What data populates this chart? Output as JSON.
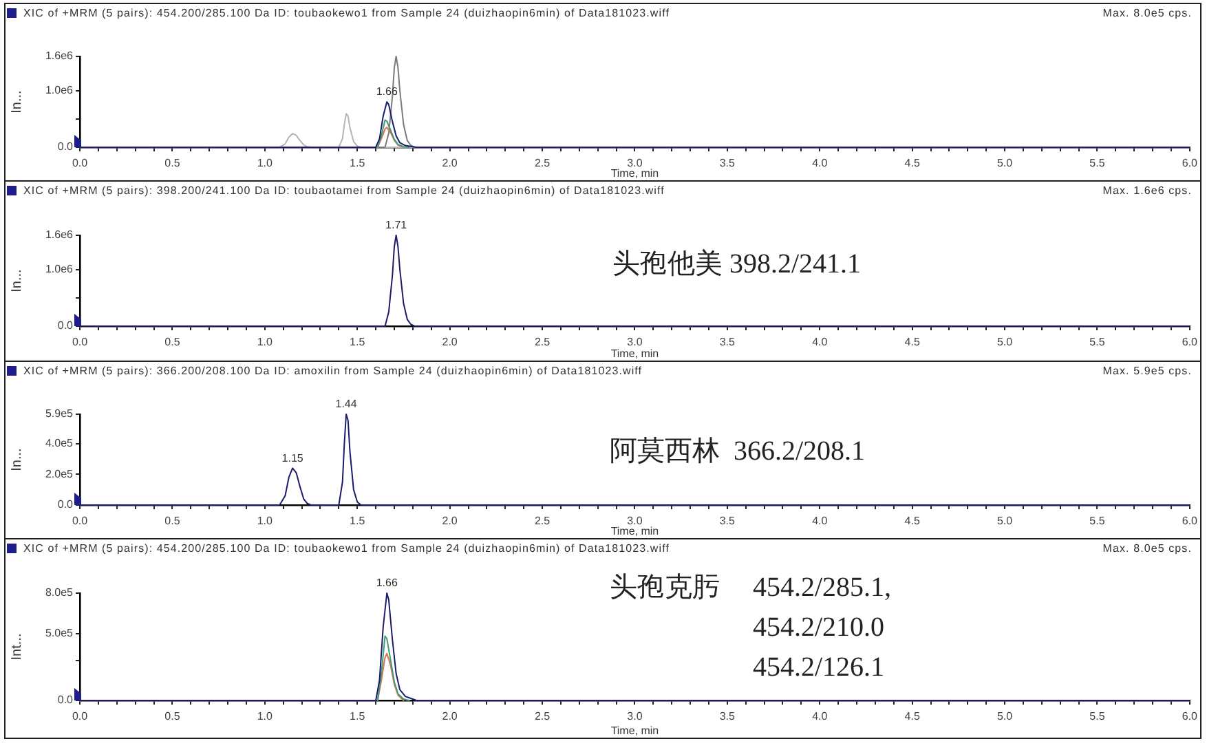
{
  "chart_data": [
    {
      "type": "line",
      "title": "XIC of +MRM (5 pairs): 454.200/285.100 Da ID: toubaokewo1 from Sample 24 (duizhaopin6min) of Data181023.wiff",
      "subtitle": "Max. 8.0e5 cps.",
      "xlabel": "Time, min",
      "ylabel": "In...",
      "xlim": [
        0,
        6
      ],
      "xticks": [
        {
          "value": 0,
          "label": "0.0"
        },
        {
          "value": 0.1,
          "label": null
        },
        {
          "value": 0.2,
          "label": null
        },
        {
          "value": 0.3,
          "label": null
        },
        {
          "value": 0.4,
          "label": null
        },
        0.5,
        {
          "value": 0.6,
          "label": null
        },
        {
          "value": 0.7,
          "label": null
        },
        {
          "value": 0.8,
          "label": null
        },
        {
          "value": 0.9,
          "label": null
        },
        {
          "value": 1,
          "label": "1.0"
        },
        {
          "value": 1.1,
          "label": null
        },
        {
          "value": 1.2,
          "label": null
        },
        {
          "value": 1.3,
          "label": null
        },
        {
          "value": 1.4,
          "label": null
        },
        1.5,
        {
          "value": 1.6,
          "label": null
        },
        {
          "value": 1.7,
          "label": null
        },
        {
          "value": 1.8,
          "label": null
        },
        {
          "value": 1.9,
          "label": null
        },
        {
          "value": 2,
          "label": "2.0"
        },
        {
          "value": 2.1,
          "label": null
        },
        {
          "value": 2.2,
          "label": null
        },
        {
          "value": 2.3,
          "label": null
        },
        {
          "value": 2.4,
          "label": null
        },
        2.5,
        {
          "value": 2.6,
          "label": null
        },
        {
          "value": 2.7,
          "label": null
        },
        {
          "value": 2.8,
          "label": null
        },
        {
          "value": 2.9,
          "label": null
        },
        {
          "value": 3,
          "label": "3.0"
        },
        {
          "value": 3.1,
          "label": null
        },
        {
          "value": 3.2,
          "label": null
        },
        {
          "value": 3.3,
          "label": null
        },
        {
          "value": 3.4,
          "label": null
        },
        3.5,
        {
          "value": 3.6,
          "label": null
        },
        {
          "value": 3.7,
          "label": null
        },
        {
          "value": 3.8,
          "label": null
        },
        {
          "value": 3.9,
          "label": null
        },
        {
          "value": 4,
          "label": "4.0"
        },
        {
          "value": 4.1,
          "label": null
        },
        {
          "value": 4.2,
          "label": null
        },
        {
          "value": 4.3,
          "label": null
        },
        {
          "value": 4.4,
          "label": null
        },
        4.5,
        {
          "value": 4.6,
          "label": null
        },
        {
          "value": 4.7,
          "label": null
        },
        {
          "value": 4.8,
          "label": null
        },
        {
          "value": 4.9,
          "label": null
        },
        {
          "value": 5,
          "label": "5.0"
        },
        {
          "value": 5.1,
          "label": null
        },
        {
          "value": 5.2,
          "label": null
        },
        {
          "value": 5.3,
          "label": null
        },
        {
          "value": 5.4,
          "label": null
        },
        5.5,
        {
          "value": 5.6,
          "label": null
        },
        {
          "value": 5.7,
          "label": null
        },
        {
          "value": 5.8,
          "label": null
        },
        {
          "value": 5.9,
          "label": null
        },
        {
          "value": 6,
          "label": "6.0"
        }
      ],
      "ylim": [
        0,
        1600000
      ],
      "yticks": [
        {
          "value": 0,
          "label": "0.0"
        },
        {
          "value": 500000,
          "label": null
        },
        {
          "value": 1000000,
          "label": "1.0e6"
        },
        {
          "value": 1600000,
          "label": "1.6e6"
        }
      ],
      "series": [
        {
          "color": "#1b1b6b",
          "x": [
            0,
            1.6,
            1.62,
            1.64,
            1.66,
            1.67,
            1.69,
            1.71,
            1.73,
            1.76,
            1.8,
            1.82,
            6
          ],
          "values": [
            0,
            0,
            150000,
            550000,
            800000,
            750000,
            450000,
            200000,
            80000,
            30000,
            10000,
            0,
            0
          ]
        },
        {
          "color": "#3f9b7a",
          "x": [
            1.61,
            1.63,
            1.65,
            1.66,
            1.68,
            1.7,
            1.72,
            1.75,
            1.78
          ],
          "values": [
            0,
            200000,
            480000,
            460000,
            300000,
            140000,
            50000,
            10000,
            0
          ]
        },
        {
          "color": "#d9734e",
          "x": [
            1.61,
            1.63,
            1.65,
            1.66,
            1.68,
            1.7,
            1.72,
            1.75
          ],
          "values": [
            0,
            150000,
            320000,
            350000,
            260000,
            120000,
            40000,
            0
          ]
        },
        {
          "color": "#7a7a7a",
          "x": [
            0,
            1.65,
            1.67,
            1.69,
            1.7,
            1.71,
            1.72,
            1.73,
            1.75,
            1.77,
            1.79,
            1.81,
            6
          ],
          "values": [
            0,
            0,
            250000,
            900000,
            1400000,
            1600000,
            1400000,
            1000000,
            400000,
            120000,
            30000,
            0,
            0
          ]
        },
        {
          "color": "#b5b5b5",
          "x": [
            0,
            1.08,
            1.11,
            1.13,
            1.15,
            1.17,
            1.19,
            1.21,
            1.23,
            1.25,
            1.4,
            1.42,
            1.43,
            1.44,
            1.45,
            1.46,
            1.48,
            1.5,
            1.52,
            6
          ],
          "values": [
            0,
            0,
            60000,
            180000,
            240000,
            210000,
            120000,
            40000,
            10000,
            0,
            0,
            150000,
            400000,
            590000,
            550000,
            350000,
            100000,
            20000,
            0,
            0
          ]
        }
      ],
      "annotations": [
        {
          "text": "1.66",
          "x": 1.66,
          "y": 800000
        }
      ]
    },
    {
      "type": "line",
      "title": "XIC of +MRM (5 pairs): 398.200/241.100 Da ID: toubaotamei from Sample 24 (duizhaopin6min) of Data181023.wiff",
      "subtitle": "Max. 1.6e6 cps.",
      "xlabel": "Time, min",
      "ylabel": "In...",
      "xlim": [
        0,
        6
      ],
      "xticks": [
        {
          "value": 0,
          "label": "0.0"
        },
        {
          "value": 0.1,
          "label": null
        },
        {
          "value": 0.2,
          "label": null
        },
        {
          "value": 0.3,
          "label": null
        },
        {
          "value": 0.4,
          "label": null
        },
        0.5,
        {
          "value": 0.6,
          "label": null
        },
        {
          "value": 0.7,
          "label": null
        },
        {
          "value": 0.8,
          "label": null
        },
        {
          "value": 0.9,
          "label": null
        },
        {
          "value": 1,
          "label": "1.0"
        },
        {
          "value": 1.1,
          "label": null
        },
        {
          "value": 1.2,
          "label": null
        },
        {
          "value": 1.3,
          "label": null
        },
        {
          "value": 1.4,
          "label": null
        },
        1.5,
        {
          "value": 1.6,
          "label": null
        },
        {
          "value": 1.7,
          "label": null
        },
        {
          "value": 1.8,
          "label": null
        },
        {
          "value": 1.9,
          "label": null
        },
        {
          "value": 2,
          "label": "2.0"
        },
        {
          "value": 2.1,
          "label": null
        },
        {
          "value": 2.2,
          "label": null
        },
        {
          "value": 2.3,
          "label": null
        },
        {
          "value": 2.4,
          "label": null
        },
        2.5,
        {
          "value": 2.6,
          "label": null
        },
        {
          "value": 2.7,
          "label": null
        },
        {
          "value": 2.8,
          "label": null
        },
        {
          "value": 2.9,
          "label": null
        },
        {
          "value": 3,
          "label": "3.0"
        },
        {
          "value": 3.1,
          "label": null
        },
        {
          "value": 3.2,
          "label": null
        },
        {
          "value": 3.3,
          "label": null
        },
        {
          "value": 3.4,
          "label": null
        },
        3.5,
        {
          "value": 3.6,
          "label": null
        },
        {
          "value": 3.7,
          "label": null
        },
        {
          "value": 3.8,
          "label": null
        },
        {
          "value": 3.9,
          "label": null
        },
        {
          "value": 4,
          "label": "4.0"
        },
        {
          "value": 4.1,
          "label": null
        },
        {
          "value": 4.2,
          "label": null
        },
        {
          "value": 4.3,
          "label": null
        },
        {
          "value": 4.4,
          "label": null
        },
        4.5,
        {
          "value": 4.6,
          "label": null
        },
        {
          "value": 4.7,
          "label": null
        },
        {
          "value": 4.8,
          "label": null
        },
        {
          "value": 4.9,
          "label": null
        },
        {
          "value": 5,
          "label": "5.0"
        },
        {
          "value": 5.1,
          "label": null
        },
        {
          "value": 5.2,
          "label": null
        },
        {
          "value": 5.3,
          "label": null
        },
        {
          "value": 5.4,
          "label": null
        },
        5.5,
        {
          "value": 5.6,
          "label": null
        },
        {
          "value": 5.7,
          "label": null
        },
        {
          "value": 5.8,
          "label": null
        },
        {
          "value": 5.9,
          "label": null
        },
        {
          "value": 6,
          "label": "6.0"
        }
      ],
      "ylim": [
        0,
        1600000
      ],
      "yticks": [
        {
          "value": 0,
          "label": "0.0"
        },
        {
          "value": 500000,
          "label": null
        },
        {
          "value": 1000000,
          "label": "1.0e6"
        },
        {
          "value": 1600000,
          "label": "1.6e6"
        }
      ],
      "series": [
        {
          "color": "#1b1b6b",
          "x": [
            0,
            1.65,
            1.67,
            1.69,
            1.7,
            1.71,
            1.72,
            1.73,
            1.75,
            1.77,
            1.79,
            1.81,
            6
          ],
          "values": [
            0,
            0,
            250000,
            900000,
            1400000,
            1600000,
            1400000,
            1000000,
            400000,
            120000,
            30000,
            0,
            0
          ]
        }
      ],
      "annotations": [
        {
          "text": "1.71",
          "x": 1.71,
          "y": 1600000
        },
        "头孢他美 398.2/241.1"
      ]
    },
    {
      "type": "line",
      "title": "XIC of +MRM (5 pairs): 366.200/208.100 Da ID: amoxilin from Sample 24 (duizhaopin6min) of Data181023.wiff",
      "subtitle": "Max. 5.9e5 cps.",
      "xlabel": "Time, min",
      "ylabel": "In...",
      "xlim": [
        0,
        6
      ],
      "xticks": [
        {
          "value": 0,
          "label": "0.0"
        },
        {
          "value": 0.1,
          "label": null
        },
        {
          "value": 0.2,
          "label": null
        },
        {
          "value": 0.3,
          "label": null
        },
        {
          "value": 0.4,
          "label": null
        },
        0.5,
        {
          "value": 0.6,
          "label": null
        },
        {
          "value": 0.7,
          "label": null
        },
        {
          "value": 0.8,
          "label": null
        },
        {
          "value": 0.9,
          "label": null
        },
        {
          "value": 1,
          "label": "1.0"
        },
        {
          "value": 1.1,
          "label": null
        },
        {
          "value": 1.2,
          "label": null
        },
        {
          "value": 1.3,
          "label": null
        },
        {
          "value": 1.4,
          "label": null
        },
        1.5,
        {
          "value": 1.6,
          "label": null
        },
        {
          "value": 1.7,
          "label": null
        },
        {
          "value": 1.8,
          "label": null
        },
        {
          "value": 1.9,
          "label": null
        },
        {
          "value": 2,
          "label": "2.0"
        },
        {
          "value": 2.1,
          "label": null
        },
        {
          "value": 2.2,
          "label": null
        },
        {
          "value": 2.3,
          "label": null
        },
        {
          "value": 2.4,
          "label": null
        },
        2.5,
        {
          "value": 2.6,
          "label": null
        },
        {
          "value": 2.7,
          "label": null
        },
        {
          "value": 2.8,
          "label": null
        },
        {
          "value": 2.9,
          "label": null
        },
        {
          "value": 3,
          "label": "3.0"
        },
        {
          "value": 3.1,
          "label": null
        },
        {
          "value": 3.2,
          "label": null
        },
        {
          "value": 3.3,
          "label": null
        },
        {
          "value": 3.4,
          "label": null
        },
        3.5,
        {
          "value": 3.6,
          "label": null
        },
        {
          "value": 3.7,
          "label": null
        },
        {
          "value": 3.8,
          "label": null
        },
        {
          "value": 3.9,
          "label": null
        },
        {
          "value": 4,
          "label": "4.0"
        },
        {
          "value": 4.1,
          "label": null
        },
        {
          "value": 4.2,
          "label": null
        },
        {
          "value": 4.3,
          "label": null
        },
        {
          "value": 4.4,
          "label": null
        },
        4.5,
        {
          "value": 4.6,
          "label": null
        },
        {
          "value": 4.7,
          "label": null
        },
        {
          "value": 4.8,
          "label": null
        },
        {
          "value": 4.9,
          "label": null
        },
        {
          "value": 5,
          "label": "5.0"
        },
        {
          "value": 5.1,
          "label": null
        },
        {
          "value": 5.2,
          "label": null
        },
        {
          "value": 5.3,
          "label": null
        },
        {
          "value": 5.4,
          "label": null
        },
        5.5,
        {
          "value": 5.6,
          "label": null
        },
        {
          "value": 5.7,
          "label": null
        },
        {
          "value": 5.8,
          "label": null
        },
        {
          "value": 5.9,
          "label": null
        },
        {
          "value": 6,
          "label": "6.0"
        }
      ],
      "ylim": [
        0,
        590000
      ],
      "yticks": [
        {
          "value": 0,
          "label": "0.0"
        },
        {
          "value": 200000,
          "label": "2.0e5"
        },
        {
          "value": 400000,
          "label": "4.0e5"
        },
        {
          "value": 590000,
          "label": "5.9e5"
        }
      ],
      "series": [
        {
          "color": "#1b1b6b",
          "x": [
            0,
            1.08,
            1.11,
            1.13,
            1.15,
            1.17,
            1.19,
            1.21,
            1.23,
            1.25,
            1.4,
            1.42,
            1.43,
            1.44,
            1.45,
            1.46,
            1.48,
            1.5,
            1.52,
            6
          ],
          "values": [
            0,
            0,
            60000,
            180000,
            240000,
            210000,
            120000,
            40000,
            10000,
            0,
            0,
            150000,
            400000,
            590000,
            550000,
            350000,
            100000,
            20000,
            0,
            0
          ]
        }
      ],
      "annotations": [
        {
          "text": "1.15",
          "x": 1.15,
          "y": 240000
        },
        {
          "text": "1.44",
          "x": 1.44,
          "y": 590000
        },
        "阿莫西林  366.2/208.1"
      ]
    },
    {
      "type": "line",
      "title": "XIC of +MRM (5 pairs): 454.200/285.100 Da ID: toubaokewo1 from Sample 24 (duizhaopin6min) of Data181023.wiff",
      "subtitle": "Max. 8.0e5 cps.",
      "xlabel": "Time, min",
      "ylabel": "Int...",
      "xlim": [
        0,
        6
      ],
      "xticks": [
        {
          "value": 0,
          "label": "0.0"
        },
        {
          "value": 0.1,
          "label": null
        },
        {
          "value": 0.2,
          "label": null
        },
        {
          "value": 0.3,
          "label": null
        },
        {
          "value": 0.4,
          "label": null
        },
        0.5,
        {
          "value": 0.6,
          "label": null
        },
        {
          "value": 0.7,
          "label": null
        },
        {
          "value": 0.8,
          "label": null
        },
        {
          "value": 0.9,
          "label": null
        },
        {
          "value": 1,
          "label": "1.0"
        },
        {
          "value": 1.1,
          "label": null
        },
        {
          "value": 1.2,
          "label": null
        },
        {
          "value": 1.3,
          "label": null
        },
        {
          "value": 1.4,
          "label": null
        },
        1.5,
        {
          "value": 1.6,
          "label": null
        },
        {
          "value": 1.7,
          "label": null
        },
        {
          "value": 1.8,
          "label": null
        },
        {
          "value": 1.9,
          "label": null
        },
        {
          "value": 2,
          "label": "2.0"
        },
        {
          "value": 2.1,
          "label": null
        },
        {
          "value": 2.2,
          "label": null
        },
        {
          "value": 2.3,
          "label": null
        },
        {
          "value": 2.4,
          "label": null
        },
        2.5,
        {
          "value": 2.6,
          "label": null
        },
        {
          "value": 2.7,
          "label": null
        },
        {
          "value": 2.8,
          "label": null
        },
        {
          "value": 2.9,
          "label": null
        },
        {
          "value": 3,
          "label": "3.0"
        },
        {
          "value": 3.1,
          "label": null
        },
        {
          "value": 3.2,
          "label": null
        },
        {
          "value": 3.3,
          "label": null
        },
        {
          "value": 3.4,
          "label": null
        },
        3.5,
        {
          "value": 3.6,
          "label": null
        },
        {
          "value": 3.7,
          "label": null
        },
        {
          "value": 3.8,
          "label": null
        },
        {
          "value": 3.9,
          "label": null
        },
        {
          "value": 4,
          "label": "4.0"
        },
        {
          "value": 4.1,
          "label": null
        },
        {
          "value": 4.2,
          "label": null
        },
        {
          "value": 4.3,
          "label": null
        },
        {
          "value": 4.4,
          "label": null
        },
        4.5,
        {
          "value": 4.6,
          "label": null
        },
        {
          "value": 4.7,
          "label": null
        },
        {
          "value": 4.8,
          "label": null
        },
        {
          "value": 4.9,
          "label": null
        },
        {
          "value": 5,
          "label": "5.0"
        },
        {
          "value": 5.1,
          "label": null
        },
        {
          "value": 5.2,
          "label": null
        },
        {
          "value": 5.3,
          "label": null
        },
        {
          "value": 5.4,
          "label": null
        },
        5.5,
        {
          "value": 5.6,
          "label": null
        },
        {
          "value": 5.7,
          "label": null
        },
        {
          "value": 5.8,
          "label": null
        },
        {
          "value": 5.9,
          "label": null
        },
        {
          "value": 6,
          "label": "6.0"
        }
      ],
      "ylim": [
        0,
        800000
      ],
      "yticks": [
        {
          "value": 0,
          "label": "0.0"
        },
        {
          "value": 300000,
          "label": null
        },
        {
          "value": 500000,
          "label": "5.0e5"
        },
        {
          "value": 800000,
          "label": "8.0e5"
        }
      ],
      "series": [
        {
          "color": "#1b1b6b",
          "x": [
            0,
            1.6,
            1.62,
            1.64,
            1.66,
            1.67,
            1.69,
            1.71,
            1.73,
            1.76,
            1.8,
            1.82,
            6
          ],
          "values": [
            0,
            0,
            150000,
            550000,
            800000,
            750000,
            450000,
            200000,
            80000,
            30000,
            10000,
            0,
            0
          ]
        },
        {
          "color": "#3f9b7a",
          "x": [
            1.61,
            1.63,
            1.65,
            1.66,
            1.68,
            1.7,
            1.72,
            1.75,
            1.78
          ],
          "values": [
            0,
            200000,
            480000,
            460000,
            300000,
            140000,
            50000,
            10000,
            0
          ]
        },
        {
          "color": "#d9734e",
          "x": [
            1.61,
            1.63,
            1.65,
            1.66,
            1.68,
            1.7,
            1.72,
            1.75
          ],
          "values": [
            0,
            150000,
            320000,
            350000,
            260000,
            120000,
            40000,
            0
          ]
        }
      ],
      "annotations": [
        {
          "text": "1.66",
          "x": 1.66,
          "y": 800000
        },
        "头孢克肟",
        "454.2/285.1,",
        "454.2/210.0",
        "454.2/126.1"
      ]
    }
  ]
}
